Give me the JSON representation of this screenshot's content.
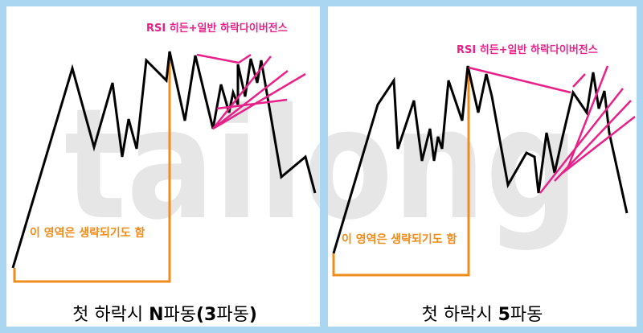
{
  "watermark": "tailong",
  "panels": [
    {
      "divergence_label": "RSI 히든+일반 하락다이버전스",
      "area_label": "이 영역은 생략되기도 함",
      "caption": [
        {
          "text": "첫 하락시 ",
          "bold": false
        },
        {
          "text": "N",
          "bold": true
        },
        {
          "text": "파동",
          "bold": false
        },
        {
          "text": "(3",
          "bold": true
        },
        {
          "text": "파동",
          "bold": false
        },
        {
          "text": ")",
          "bold": true
        }
      ]
    },
    {
      "divergence_label": "RSI 히든+일반 하락다이버전스",
      "area_label": "이 영역은 생략되기도 함",
      "caption": [
        {
          "text": "첫 하락시 ",
          "bold": false
        },
        {
          "text": "5",
          "bold": true
        },
        {
          "text": "파동",
          "bold": false
        }
      ]
    }
  ]
}
